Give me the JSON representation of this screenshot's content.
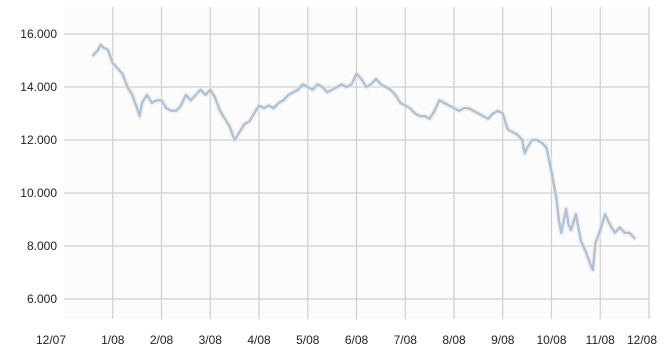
{
  "chart_data": {
    "type": "line",
    "title": "",
    "xlabel": "",
    "ylabel": "",
    "ylim": [
      5000,
      17000
    ],
    "y_ticks": [
      {
        "value": 6000,
        "label": "6.000"
      },
      {
        "value": 8000,
        "label": "8.000"
      },
      {
        "value": 10000,
        "label": "10.000"
      },
      {
        "value": 12000,
        "label": "12.000"
      },
      {
        "value": 14000,
        "label": "14.000"
      },
      {
        "value": 16000,
        "label": "16.000"
      }
    ],
    "x_ticks": [
      {
        "month": 0,
        "label": "12/07"
      },
      {
        "month": 1,
        "label": "1/08"
      },
      {
        "month": 2,
        "label": "2/08"
      },
      {
        "month": 3,
        "label": "3/08"
      },
      {
        "month": 4,
        "label": "4/08"
      },
      {
        "month": 5,
        "label": "5/08"
      },
      {
        "month": 6,
        "label": "6/08"
      },
      {
        "month": 7,
        "label": "7/08"
      },
      {
        "month": 8,
        "label": "8/08"
      },
      {
        "month": 9,
        "label": "9/08"
      },
      {
        "month": 10,
        "label": "10/08"
      },
      {
        "month": 11,
        "label": "11/08"
      },
      {
        "month": 12,
        "label": "12/08"
      }
    ],
    "grid": true,
    "legend": "none",
    "series": [
      {
        "color": "#a9c3df",
        "points": [
          [
            0.6,
            15200
          ],
          [
            0.7,
            15400
          ],
          [
            0.75,
            15600
          ],
          [
            0.8,
            15500
          ],
          [
            0.9,
            15400
          ],
          [
            1.0,
            14900
          ],
          [
            1.1,
            14700
          ],
          [
            1.2,
            14500
          ],
          [
            1.3,
            14000
          ],
          [
            1.4,
            13700
          ],
          [
            1.5,
            13200
          ],
          [
            1.55,
            12900
          ],
          [
            1.6,
            13400
          ],
          [
            1.7,
            13700
          ],
          [
            1.8,
            13400
          ],
          [
            1.9,
            13500
          ],
          [
            2.0,
            13500
          ],
          [
            2.1,
            13200
          ],
          [
            2.2,
            13100
          ],
          [
            2.3,
            13100
          ],
          [
            2.4,
            13300
          ],
          [
            2.5,
            13700
          ],
          [
            2.6,
            13500
          ],
          [
            2.7,
            13700
          ],
          [
            2.8,
            13900
          ],
          [
            2.9,
            13700
          ],
          [
            3.0,
            13900
          ],
          [
            3.1,
            13600
          ],
          [
            3.2,
            13100
          ],
          [
            3.3,
            12800
          ],
          [
            3.4,
            12500
          ],
          [
            3.5,
            12000
          ],
          [
            3.6,
            12300
          ],
          [
            3.7,
            12600
          ],
          [
            3.8,
            12700
          ],
          [
            3.9,
            13000
          ],
          [
            4.0,
            13300
          ],
          [
            4.1,
            13200
          ],
          [
            4.2,
            13300
          ],
          [
            4.3,
            13200
          ],
          [
            4.4,
            13400
          ],
          [
            4.5,
            13500
          ],
          [
            4.6,
            13700
          ],
          [
            4.7,
            13800
          ],
          [
            4.8,
            13900
          ],
          [
            4.9,
            14100
          ],
          [
            5.0,
            14000
          ],
          [
            5.1,
            13900
          ],
          [
            5.2,
            14100
          ],
          [
            5.3,
            14000
          ],
          [
            5.4,
            13800
          ],
          [
            5.5,
            13900
          ],
          [
            5.6,
            14000
          ],
          [
            5.7,
            14100
          ],
          [
            5.8,
            14000
          ],
          [
            5.9,
            14100
          ],
          [
            6.0,
            14500
          ],
          [
            6.1,
            14300
          ],
          [
            6.2,
            14000
          ],
          [
            6.3,
            14100
          ],
          [
            6.4,
            14300
          ],
          [
            6.5,
            14100
          ],
          [
            6.6,
            14000
          ],
          [
            6.7,
            13900
          ],
          [
            6.8,
            13700
          ],
          [
            6.9,
            13400
          ],
          [
            7.0,
            13300
          ],
          [
            7.1,
            13200
          ],
          [
            7.2,
            13000
          ],
          [
            7.3,
            12900
          ],
          [
            7.4,
            12900
          ],
          [
            7.5,
            12800
          ],
          [
            7.6,
            13100
          ],
          [
            7.7,
            13500
          ],
          [
            7.8,
            13400
          ],
          [
            7.9,
            13300
          ],
          [
            8.0,
            13200
          ],
          [
            8.1,
            13100
          ],
          [
            8.2,
            13200
          ],
          [
            8.3,
            13200
          ],
          [
            8.4,
            13100
          ],
          [
            8.5,
            13000
          ],
          [
            8.6,
            12900
          ],
          [
            8.7,
            12800
          ],
          [
            8.8,
            13000
          ],
          [
            8.9,
            13100
          ],
          [
            9.0,
            13000
          ],
          [
            9.1,
            12400
          ],
          [
            9.2,
            12300
          ],
          [
            9.3,
            12200
          ],
          [
            9.4,
            12000
          ],
          [
            9.45,
            11500
          ],
          [
            9.5,
            11700
          ],
          [
            9.6,
            12000
          ],
          [
            9.7,
            12000
          ],
          [
            9.8,
            11900
          ],
          [
            9.9,
            11700
          ],
          [
            10.0,
            10800
          ],
          [
            10.1,
            9800
          ],
          [
            10.15,
            9000
          ],
          [
            10.2,
            8500
          ],
          [
            10.3,
            9400
          ],
          [
            10.35,
            8800
          ],
          [
            10.4,
            8600
          ],
          [
            10.5,
            9200
          ],
          [
            10.6,
            8200
          ],
          [
            10.7,
            7800
          ],
          [
            10.8,
            7300
          ],
          [
            10.85,
            7100
          ],
          [
            10.9,
            8100
          ],
          [
            11.0,
            8600
          ],
          [
            11.1,
            9200
          ],
          [
            11.2,
            8800
          ],
          [
            11.3,
            8500
          ],
          [
            11.4,
            8700
          ],
          [
            11.5,
            8500
          ],
          [
            11.6,
            8500
          ],
          [
            11.7,
            8300
          ]
        ]
      }
    ]
  }
}
